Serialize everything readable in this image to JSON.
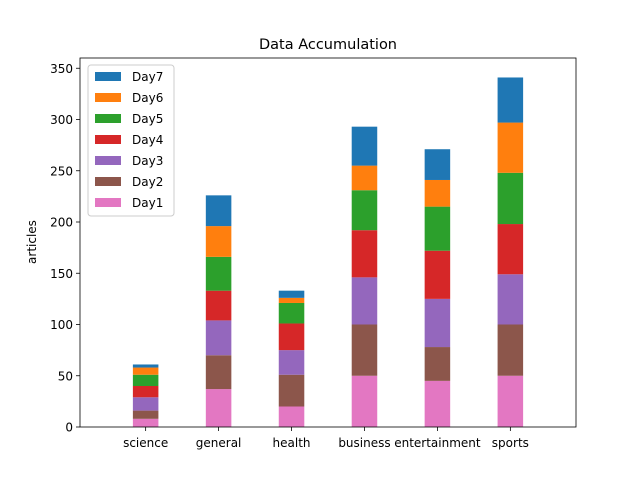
{
  "chart_data": {
    "type": "bar",
    "stacked": true,
    "title": "Data Accumulation",
    "xlabel": "",
    "ylabel": "articles",
    "ylim": [
      0,
      360
    ],
    "yticks": [
      0,
      50,
      100,
      150,
      200,
      250,
      300,
      350
    ],
    "categories": [
      "science",
      "general",
      "health",
      "business",
      "entertainment",
      "sports"
    ],
    "series": [
      {
        "name": "Day1",
        "color": "#e377c2",
        "values": [
          8,
          37,
          20,
          50,
          45,
          50
        ]
      },
      {
        "name": "Day2",
        "color": "#8c564b",
        "values": [
          8,
          33,
          31,
          50,
          33,
          50
        ]
      },
      {
        "name": "Day3",
        "color": "#9467bd",
        "values": [
          13,
          34,
          24,
          46,
          47,
          49
        ]
      },
      {
        "name": "Day4",
        "color": "#d62728",
        "values": [
          11,
          29,
          26,
          46,
          47,
          49
        ]
      },
      {
        "name": "Day5",
        "color": "#2ca02c",
        "values": [
          11,
          33,
          20,
          39,
          43,
          50
        ]
      },
      {
        "name": "Day6",
        "color": "#ff7f0e",
        "values": [
          7,
          30,
          5,
          24,
          26,
          49
        ]
      },
      {
        "name": "Day7",
        "color": "#1f77b4",
        "values": [
          3,
          30,
          7,
          38,
          30,
          44
        ]
      }
    ],
    "legend": {
      "placement": "upper-left",
      "order": [
        "Day7",
        "Day6",
        "Day5",
        "Day4",
        "Day3",
        "Day2",
        "Day1"
      ]
    },
    "grid": false
  }
}
